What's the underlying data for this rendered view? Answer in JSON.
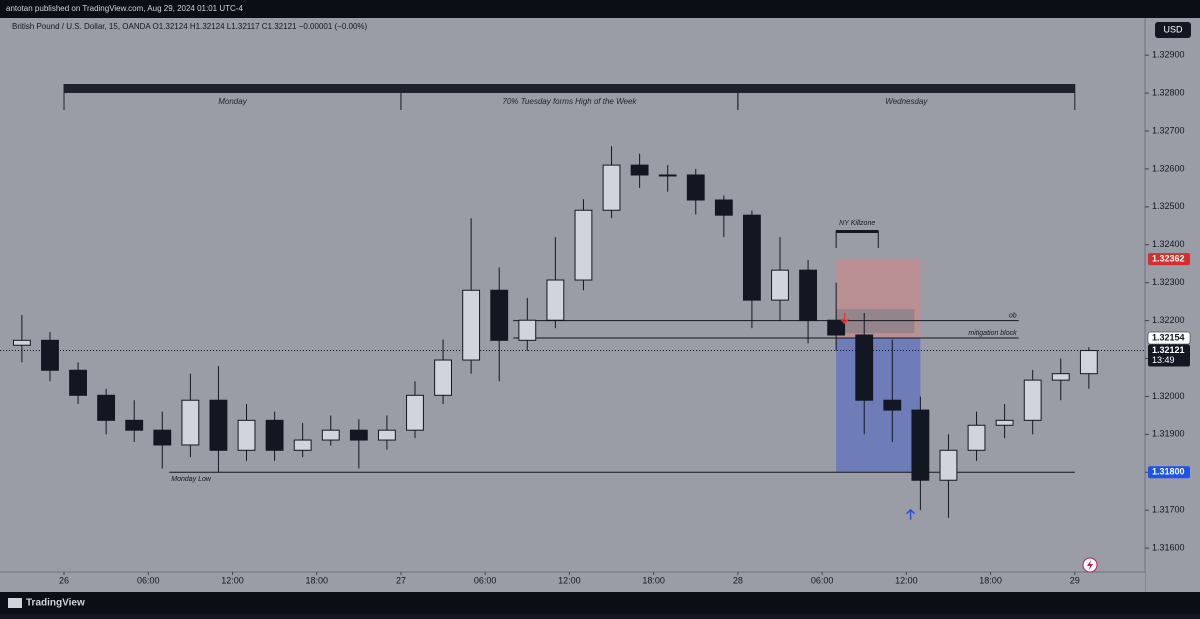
{
  "chart_data": {
    "type": "candlestick",
    "publisher_line": "antotan published on TradingView.com, Aug 29, 2024 01:01 UTC-4",
    "header": "British Pound / U.S. Dollar, 15, OANDA  O1.32124  H1.32124  L1.32117  C1.32121  −0.00001 (−0.00%)",
    "currency": "USD",
    "brand": "TradingView",
    "candle_color": "#131722",
    "x": [
      -4,
      -2,
      0,
      2,
      4,
      6,
      8,
      10,
      12,
      14,
      16,
      18,
      20,
      22,
      24,
      26,
      28,
      30,
      32,
      34,
      36,
      38,
      40,
      42,
      44,
      46,
      48,
      50,
      52,
      54,
      56,
      58,
      60,
      62,
      64,
      66,
      68,
      70,
      72
    ],
    "open": [
      1.32135,
      1.32148,
      1.32069,
      1.32003,
      1.31937,
      1.31911,
      1.31872,
      1.3199,
      1.31858,
      1.31937,
      1.31858,
      1.31885,
      1.31911,
      1.31885,
      1.31911,
      1.32003,
      1.32096,
      1.3228,
      1.32148,
      1.32201,
      1.32307,
      1.32491,
      1.3261,
      1.32584,
      1.32584,
      1.32518,
      1.32478,
      1.32254,
      1.32333,
      1.32201,
      1.32162,
      1.3199,
      1.31964,
      1.31779,
      1.31858,
      1.31924,
      1.31937,
      1.32043,
      1.3206
    ],
    "high": [
      1.32215,
      1.3217,
      1.3209,
      1.3202,
      1.3199,
      1.3196,
      1.3206,
      1.3208,
      1.3198,
      1.3196,
      1.3193,
      1.3195,
      1.3194,
      1.3195,
      1.3204,
      1.3215,
      1.3247,
      1.3234,
      1.3226,
      1.3242,
      1.3252,
      1.3266,
      1.3264,
      1.3261,
      1.326,
      1.3253,
      1.3249,
      1.3242,
      1.3236,
      1.323,
      1.3222,
      1.3215,
      1.32,
      1.319,
      1.3196,
      1.3198,
      1.3207,
      1.321,
      1.3213
    ],
    "low": [
      1.3209,
      1.3204,
      1.3198,
      1.319,
      1.3188,
      1.3181,
      1.3184,
      1.318,
      1.3183,
      1.3183,
      1.3184,
      1.3187,
      1.3181,
      1.3186,
      1.3189,
      1.3198,
      1.3206,
      1.3204,
      1.3212,
      1.3218,
      1.3228,
      1.3247,
      1.3255,
      1.3254,
      1.3248,
      1.3242,
      1.3218,
      1.322,
      1.3214,
      1.3212,
      1.319,
      1.3188,
      1.317,
      1.3168,
      1.3183,
      1.3189,
      1.319,
      1.3199,
      1.3202
    ],
    "close": [
      1.32148,
      1.32069,
      1.32003,
      1.31937,
      1.31911,
      1.31872,
      1.3199,
      1.31858,
      1.31937,
      1.31858,
      1.31885,
      1.31911,
      1.31885,
      1.31911,
      1.32003,
      1.32096,
      1.3228,
      1.32148,
      1.32201,
      1.32307,
      1.32491,
      1.3261,
      1.32584,
      1.32584,
      1.32518,
      1.32478,
      1.32254,
      1.32333,
      1.32201,
      1.32162,
      1.3199,
      1.31964,
      1.31779,
      1.31858,
      1.31924,
      1.31937,
      1.32043,
      1.3206,
      1.32121
    ],
    "xlim": [
      -4.56,
      77
    ],
    "ylim": [
      1.31537,
      1.32998
    ],
    "yticks": [
      {
        "value": 1.329,
        "label": "1.32900"
      },
      {
        "value": 1.328,
        "label": "1.32800"
      },
      {
        "value": 1.327,
        "label": "1.32700"
      },
      {
        "value": 1.326,
        "label": "1.32600"
      },
      {
        "value": 1.325,
        "label": "1.32500"
      },
      {
        "value": 1.324,
        "label": "1.32400"
      },
      {
        "value": 1.323,
        "label": "1.32300"
      },
      {
        "value": 1.322,
        "label": "1.32200"
      },
      {
        "value": 1.321,
        "label": "1.32100"
      },
      {
        "value": 1.32,
        "label": "1.32000"
      },
      {
        "value": 1.319,
        "label": "1.31900"
      },
      {
        "value": 1.318,
        "label": "1.31800"
      },
      {
        "value": 1.317,
        "label": "1.31700"
      },
      {
        "value": 1.316,
        "label": "1.31600"
      }
    ],
    "xticks": [
      {
        "value": 0,
        "label": "26"
      },
      {
        "value": 6,
        "label": "06:00"
      },
      {
        "value": 12,
        "label": "12:00"
      },
      {
        "value": 18,
        "label": "18:00"
      },
      {
        "value": 24,
        "label": "27"
      },
      {
        "value": 30,
        "label": "06:00"
      },
      {
        "value": 36,
        "label": "12:00"
      },
      {
        "value": 42,
        "label": "18:00"
      },
      {
        "value": 48,
        "label": "28"
      },
      {
        "value": 54,
        "label": "06:00"
      },
      {
        "value": 60,
        "label": "12:00"
      },
      {
        "value": 66,
        "label": "18:00"
      },
      {
        "value": 72,
        "label": "29"
      }
    ],
    "sessions": [
      {
        "label": "Monday",
        "start": 0,
        "end": 24
      },
      {
        "label": "70% Tuesday forms High of the Week",
        "start": 24,
        "end": 48
      },
      {
        "label": "Wednesday",
        "start": 48,
        "end": 72
      }
    ],
    "killzone": {
      "label": "NY Killzone",
      "start": 55,
      "end": 58
    },
    "zones": [
      {
        "top": 1.32362,
        "bottom": 1.32154,
        "start": 55,
        "end": 61,
        "color": "#c98a8f"
      },
      {
        "top": 1.32154,
        "bottom": {
          "value": 1.318,
          "label": "1.31800"
        },
        "start": 55,
        "end": 61,
        "color": "#5b6fbf"
      }
    ],
    "levels": [
      {
        "value": 1.322,
        "start": 32,
        "end": 68,
        "label": "ob"
      },
      {
        "value": 1.32154,
        "start": 32,
        "end": 68,
        "label": "mitigation block"
      },
      {
        "value": 1.318,
        "start": 7.5,
        "end": 72,
        "label": "Monday Low"
      }
    ],
    "badges": [
      {
        "value": 1.32362,
        "color": "#d32f2f"
      },
      {
        "value": 1.32154,
        "color": "#ffffff"
      },
      {
        "value": {
          "value": 1.318,
          "label": "1.31800"
        },
        "color": "#1e53e5"
      }
    ],
    "last_price": 1.32121,
    "countdown": "13:49"
  }
}
